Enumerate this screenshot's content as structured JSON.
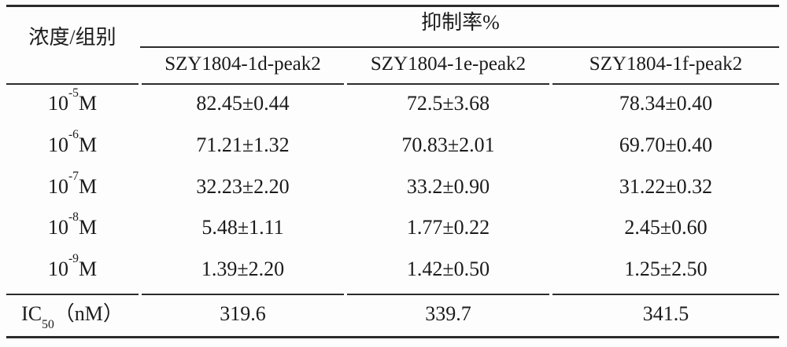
{
  "table": {
    "header": {
      "row_group_label": "浓度/组别",
      "span_label": "抑制率%",
      "columns": [
        "SZY1804-1d-peak2",
        "SZY1804-1e-peak2",
        "SZY1804-1f-peak2"
      ]
    },
    "rows": [
      {
        "base": "10",
        "exp": "-5",
        "unit": "M",
        "values": [
          "82.45±0.44",
          "72.5±3.68",
          "78.34±0.40"
        ]
      },
      {
        "base": "10",
        "exp": "-6",
        "unit": "M",
        "values": [
          "71.21±1.32",
          "70.83±2.01",
          "69.70±0.40"
        ]
      },
      {
        "base": "10",
        "exp": "-7",
        "unit": "M",
        "values": [
          "32.23±2.20",
          "33.2±0.90",
          "31.22±0.32"
        ]
      },
      {
        "base": "10",
        "exp": "-8",
        "unit": "M",
        "values": [
          "5.48±1.11",
          "1.77±0.22",
          "2.45±0.60"
        ]
      },
      {
        "base": "10",
        "exp": "-9",
        "unit": "M",
        "values": [
          "1.39±2.20",
          "1.42±0.50",
          "1.25±2.50"
        ]
      }
    ],
    "footer": {
      "label_prefix": "IC",
      "label_sub": "50",
      "label_suffix": "（nM）",
      "values": [
        "319.6",
        "339.7",
        "341.5"
      ]
    }
  },
  "colors": {
    "background": "#fdfdfd",
    "text": "#1b1b1b",
    "line": "#2b2b2b"
  }
}
